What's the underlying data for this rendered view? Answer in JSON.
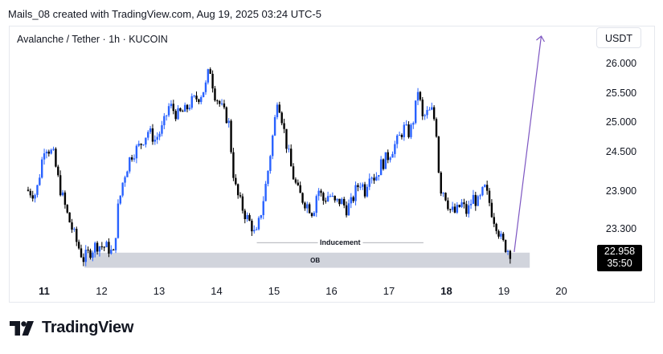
{
  "header": {
    "caption": "Mails_08 created with TradingView.com, Aug 19, 2025 03:24 UTC-5"
  },
  "chart_header": {
    "symbol_title": "Avalanche / Tether · 1h · KUCOIN",
    "currency_button": "USDT"
  },
  "price_tag": {
    "price": "22.958",
    "countdown": "35:50",
    "background": "#000000"
  },
  "brand": {
    "name": "TradingView"
  },
  "colors": {
    "up_candle": "#2962ff",
    "down_candle": "#000000",
    "zone_fill": "#d1d4dc",
    "arrow": "#7e57c2",
    "line": "#9598a1"
  },
  "chart_data": {
    "type": "candlestick",
    "y_ticks": [
      "26.000",
      "25.500",
      "25.000",
      "24.500",
      "23.900",
      "23.300"
    ],
    "x_ticks": [
      {
        "label": "11",
        "bold": true
      },
      {
        "label": "12",
        "bold": false
      },
      {
        "label": "13",
        "bold": false
      },
      {
        "label": "14",
        "bold": false
      },
      {
        "label": "15",
        "bold": false
      },
      {
        "label": "16",
        "bold": false
      },
      {
        "label": "17",
        "bold": false
      },
      {
        "label": "18",
        "bold": true
      },
      {
        "label": "19",
        "bold": false
      },
      {
        "label": "20",
        "bold": false
      }
    ],
    "annotations": {
      "inducement": {
        "label": "Inducement",
        "price": 23.08,
        "x_start_day": 14.7,
        "x_end_day": 17.6
      },
      "ob_zone": {
        "label": "OB",
        "price_top": 22.92,
        "price_bottom": 22.68,
        "x_start_day": 11.7,
        "x_end_day": 19.45
      },
      "projection_arrow": {
        "from_day": 19.18,
        "from_price": 22.93,
        "to_day": 19.65,
        "to_price": 26.47
      }
    },
    "close_path": [
      [
        10.72,
        23.92
      ],
      [
        10.9,
        23.85
      ],
      [
        11.05,
        24.62
      ],
      [
        11.2,
        24.45
      ],
      [
        11.3,
        24.0
      ],
      [
        11.45,
        23.5
      ],
      [
        11.6,
        23.1
      ],
      [
        11.72,
        22.82
      ],
      [
        11.85,
        22.95
      ],
      [
        11.95,
        23.05
      ],
      [
        12.05,
        23.02
      ],
      [
        12.15,
        23.0
      ],
      [
        12.25,
        22.88
      ],
      [
        12.32,
        23.6
      ],
      [
        12.42,
        24.1
      ],
      [
        12.55,
        24.45
      ],
      [
        12.7,
        24.6
      ],
      [
        12.85,
        24.85
      ],
      [
        12.97,
        24.7
      ],
      [
        13.1,
        24.9
      ],
      [
        13.22,
        25.3
      ],
      [
        13.35,
        25.12
      ],
      [
        13.5,
        25.2
      ],
      [
        13.6,
        25.35
      ],
      [
        13.75,
        25.45
      ],
      [
        13.85,
        25.62
      ],
      [
        13.92,
        25.95
      ],
      [
        14.0,
        25.5
      ],
      [
        14.1,
        25.3
      ],
      [
        14.25,
        25.0
      ],
      [
        14.32,
        24.25
      ],
      [
        14.38,
        23.9
      ],
      [
        14.45,
        23.72
      ],
      [
        14.55,
        23.5
      ],
      [
        14.65,
        23.35
      ],
      [
        14.72,
        23.15
      ],
      [
        14.8,
        23.5
      ],
      [
        14.88,
        23.9
      ],
      [
        14.95,
        24.3
      ],
      [
        15.05,
        25.0
      ],
      [
        15.1,
        25.45
      ],
      [
        15.18,
        25.05
      ],
      [
        15.25,
        24.65
      ],
      [
        15.35,
        24.2
      ],
      [
        15.45,
        23.9
      ],
      [
        15.55,
        23.75
      ],
      [
        15.65,
        23.65
      ],
      [
        15.72,
        23.55
      ],
      [
        15.8,
        23.95
      ],
      [
        15.9,
        23.75
      ],
      [
        16.0,
        23.85
      ],
      [
        16.1,
        23.7
      ],
      [
        16.2,
        23.75
      ],
      [
        16.3,
        23.62
      ],
      [
        16.38,
        23.7
      ],
      [
        16.48,
        23.95
      ],
      [
        16.55,
        24.05
      ],
      [
        16.62,
        23.9
      ],
      [
        16.7,
        24.2
      ],
      [
        16.8,
        24.1
      ],
      [
        16.9,
        24.3
      ],
      [
        17.0,
        24.4
      ],
      [
        17.1,
        24.55
      ],
      [
        17.2,
        24.7
      ],
      [
        17.3,
        24.9
      ],
      [
        17.4,
        24.8
      ],
      [
        17.48,
        25.1
      ],
      [
        17.55,
        25.6
      ],
      [
        17.62,
        25.05
      ],
      [
        17.7,
        25.15
      ],
      [
        17.8,
        25.2
      ],
      [
        17.88,
        24.75
      ],
      [
        17.92,
        23.95
      ],
      [
        18.0,
        23.9
      ],
      [
        18.1,
        23.6
      ],
      [
        18.2,
        23.55
      ],
      [
        18.3,
        23.7
      ],
      [
        18.4,
        23.55
      ],
      [
        18.5,
        23.8
      ],
      [
        18.6,
        23.7
      ],
      [
        18.7,
        23.95
      ],
      [
        18.78,
        23.75
      ],
      [
        18.85,
        23.5
      ],
      [
        18.92,
        23.35
      ],
      [
        19.0,
        23.1
      ],
      [
        19.08,
        23.0
      ],
      [
        19.15,
        22.93
      ]
    ],
    "wick": 0.08,
    "candle_count": 210
  }
}
